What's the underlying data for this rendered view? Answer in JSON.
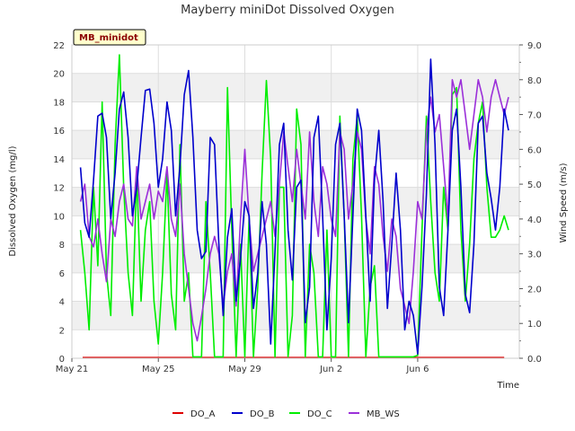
{
  "chart_data": {
    "type": "line",
    "title": "Mayberry miniDot Dissolved Oxygen",
    "station_label": "MB_minidot",
    "xlabel": "Time",
    "ylabel": "Dissolved Oxygen (mg/l)",
    "y2label": "Wind Speed (m/s)",
    "x_range_days": [
      0,
      20.7
    ],
    "ylim": [
      0,
      22
    ],
    "y2lim": [
      0,
      9
    ],
    "x_ticks": [
      {
        "label": "May 21",
        "day": 0
      },
      {
        "label": "May 25",
        "day": 4
      },
      {
        "label": "May 29",
        "day": 8
      },
      {
        "label": "Jun 2",
        "day": 12
      },
      {
        "label": "Jun 6",
        "day": 16
      }
    ],
    "y_ticks": [
      "0",
      "2",
      "4",
      "6",
      "8",
      "10",
      "12",
      "14",
      "16",
      "18",
      "20",
      "22"
    ],
    "y2_ticks": [
      "0.0",
      "1.0",
      "2.0",
      "3.0",
      "4.0",
      "5.0",
      "6.0",
      "7.0",
      "8.0",
      "9.0"
    ],
    "grid": true,
    "legend_position": "bottom",
    "series": [
      {
        "name": "DO_A",
        "axis": "left",
        "color": "#dd0000",
        "x": [
          0.5,
          20.0
        ],
        "y": [
          0.05,
          0.05
        ]
      },
      {
        "name": "DO_B",
        "axis": "left",
        "color": "#0000cc",
        "x": [
          0.4,
          0.6,
          0.8,
          1.0,
          1.2,
          1.4,
          1.6,
          1.8,
          2.0,
          2.2,
          2.4,
          2.6,
          2.8,
          3.0,
          3.2,
          3.4,
          3.6,
          3.8,
          4.0,
          4.2,
          4.4,
          4.6,
          4.8,
          5.0,
          5.2,
          5.4,
          5.6,
          5.8,
          6.0,
          6.2,
          6.4,
          6.6,
          6.8,
          7.0,
          7.2,
          7.4,
          7.6,
          7.8,
          8.0,
          8.2,
          8.4,
          8.6,
          8.8,
          9.0,
          9.2,
          9.4,
          9.6,
          9.8,
          10.0,
          10.2,
          10.4,
          10.6,
          10.8,
          11.0,
          11.2,
          11.4,
          11.6,
          11.8,
          12.0,
          12.2,
          12.4,
          12.6,
          12.8,
          13.0,
          13.2,
          13.4,
          13.6,
          13.8,
          14.0,
          14.2,
          14.4,
          14.6,
          14.8,
          15.0,
          15.2,
          15.4,
          15.6,
          15.8,
          16.0,
          16.2,
          16.4,
          16.6,
          16.8,
          17.0,
          17.2,
          17.4,
          17.6,
          17.8,
          18.0,
          18.2,
          18.4,
          18.6,
          18.8,
          19.0,
          19.2,
          19.4,
          19.6,
          19.8,
          20.0,
          20.2
        ],
        "y": [
          13.4,
          9.5,
          8.5,
          12.5,
          17.0,
          17.2,
          15.5,
          9.8,
          13.0,
          17.5,
          18.7,
          15.5,
          10.0,
          12.0,
          15.5,
          18.8,
          18.9,
          16.5,
          12.0,
          14.0,
          18.0,
          16.0,
          10.0,
          13.5,
          18.5,
          20.2,
          15.5,
          9.0,
          7.0,
          7.5,
          15.5,
          15.0,
          8.0,
          3.0,
          8.5,
          10.5,
          4.0,
          7.0,
          11.0,
          10.0,
          3.5,
          6.0,
          11.0,
          8.0,
          1.0,
          7.5,
          15.0,
          16.5,
          9.0,
          5.5,
          12.0,
          12.5,
          2.5,
          5.0,
          15.5,
          17.0,
          10.0,
          2.0,
          7.0,
          15.0,
          16.5,
          10.0,
          2.5,
          10.0,
          17.5,
          16.0,
          10.0,
          4.0,
          12.5,
          16.0,
          11.0,
          3.5,
          8.0,
          13.0,
          9.0,
          2.0,
          4.0,
          3.0,
          0.3,
          5.0,
          11.5,
          21.0,
          15.0,
          5.0,
          3.0,
          9.0,
          16.0,
          17.5,
          12.0,
          4.5,
          3.2,
          8.0,
          16.5,
          17.0,
          13.0,
          11.2,
          9.0,
          12.0,
          17.5,
          16.0
        ],
        "note": "DO_B continuous trace"
      },
      {
        "name": "DO_C",
        "axis": "left",
        "color": "#00ee00",
        "x": [
          0.4,
          0.6,
          0.8,
          1.0,
          1.2,
          1.4,
          1.6,
          1.8,
          2.0,
          2.2,
          2.4,
          2.6,
          2.8,
          3.0,
          3.2,
          3.4,
          3.6,
          3.8,
          4.0,
          4.2,
          4.4,
          4.6,
          4.8,
          5.0,
          5.2,
          5.4,
          5.6,
          5.8,
          6.0,
          6.2,
          6.4,
          6.6,
          6.8,
          7.0,
          7.2,
          7.4,
          7.6,
          7.8,
          8.0,
          8.2,
          8.4,
          8.6,
          8.8,
          9.0,
          9.2,
          9.4,
          9.6,
          9.8,
          10.0,
          10.2,
          10.4,
          10.6,
          10.8,
          11.0,
          11.2,
          11.4,
          11.6,
          11.8,
          12.0,
          12.2,
          12.4,
          12.6,
          12.8,
          13.0,
          13.2,
          13.4,
          13.6,
          13.8,
          14.0,
          14.2,
          14.4,
          14.6,
          14.8,
          15.0,
          15.2,
          15.4,
          15.6,
          15.8,
          16.0,
          16.2,
          16.4,
          16.6,
          16.8,
          17.0,
          17.2,
          17.4,
          17.6,
          17.8,
          18.0,
          18.2,
          18.4,
          18.6,
          18.8,
          19.0,
          19.2,
          19.4,
          19.6,
          19.8,
          20.0,
          20.2
        ],
        "y": [
          9.0,
          6.0,
          2.0,
          12.0,
          6.5,
          18.0,
          6.0,
          3.0,
          15.0,
          21.3,
          12.0,
          6.0,
          3.0,
          13.0,
          4.0,
          9.0,
          11.0,
          4.0,
          1.0,
          6.0,
          13.0,
          4.5,
          2.0,
          15.0,
          4.0,
          6.0,
          0.1,
          0.1,
          0.1,
          11.0,
          6.0,
          0.1,
          0.1,
          0.1,
          19.0,
          9.0,
          0.1,
          8.0,
          0.1,
          10.0,
          0.1,
          5.0,
          13.0,
          19.5,
          14.0,
          0.1,
          12.0,
          12.0,
          0.1,
          3.0,
          17.5,
          15.0,
          0.1,
          8.0,
          6.0,
          0.1,
          0.1,
          9.0,
          0.1,
          0.1,
          17.0,
          10.0,
          0.1,
          14.0,
          17.0,
          10.0,
          0.1,
          5.0,
          6.5,
          0.1,
          0.1,
          0.1,
          0.1,
          0.1,
          0.1,
          0.1,
          0.1,
          0.1,
          0.2,
          9.0,
          17.0,
          11.0,
          6.0,
          4.0,
          12.0,
          9.0,
          18.5,
          19.0,
          9.0,
          4.0,
          8.0,
          14.0,
          16.5,
          18.0,
          12.0,
          8.5,
          8.5,
          9.0,
          10.0,
          9.0
        ],
        "note": "DO_C continuous trace"
      },
      {
        "name": "MB_WS",
        "axis": "right",
        "color": "#9b30d9",
        "x": [
          0.4,
          0.6,
          0.8,
          1.0,
          1.2,
          1.4,
          1.6,
          1.8,
          2.0,
          2.2,
          2.4,
          2.6,
          2.8,
          3.0,
          3.2,
          3.4,
          3.6,
          3.8,
          4.0,
          4.2,
          4.4,
          4.6,
          4.8,
          5.0,
          5.2,
          5.4,
          5.6,
          5.8,
          6.0,
          6.2,
          6.4,
          6.6,
          6.8,
          7.0,
          7.2,
          7.4,
          7.6,
          7.8,
          8.0,
          8.2,
          8.4,
          8.6,
          8.8,
          9.0,
          9.2,
          9.4,
          9.6,
          9.8,
          10.0,
          10.2,
          10.4,
          10.6,
          10.8,
          11.0,
          11.2,
          11.4,
          11.6,
          11.8,
          12.0,
          12.2,
          12.4,
          12.6,
          12.8,
          13.0,
          13.2,
          13.4,
          13.6,
          13.8,
          14.0,
          14.2,
          14.4,
          14.6,
          14.8,
          15.0,
          15.2,
          15.4,
          15.6,
          15.8,
          16.0,
          16.2,
          16.4,
          16.6,
          16.8,
          17.0,
          17.2,
          17.4,
          17.6,
          17.8,
          18.0,
          18.2,
          18.4,
          18.6,
          18.8,
          19.0,
          19.2,
          19.4,
          19.6,
          19.8,
          20.0,
          20.2
        ],
        "y": [
          4.5,
          5.0,
          3.5,
          3.2,
          4.0,
          3.0,
          2.2,
          4.0,
          3.5,
          4.5,
          5.0,
          4.0,
          3.8,
          5.5,
          4.0,
          4.5,
          5.0,
          4.0,
          4.8,
          4.5,
          5.5,
          4.0,
          3.5,
          5.0,
          3.0,
          2.0,
          1.0,
          0.5,
          1.2,
          2.0,
          3.0,
          3.5,
          3.0,
          1.5,
          2.5,
          3.0,
          1.5,
          4.0,
          6.0,
          4.0,
          2.5,
          3.0,
          3.5,
          4.0,
          4.5,
          3.5,
          5.0,
          6.5,
          5.5,
          4.5,
          6.0,
          5.0,
          4.0,
          6.5,
          4.5,
          3.5,
          5.5,
          5.0,
          4.0,
          3.5,
          6.5,
          6.0,
          4.0,
          5.0,
          6.5,
          6.0,
          4.0,
          3.0,
          5.5,
          5.0,
          3.5,
          2.5,
          4.0,
          3.5,
          2.0,
          1.5,
          1.0,
          2.5,
          4.5,
          4.0,
          6.5,
          7.5,
          6.5,
          7.0,
          5.5,
          4.0,
          8.0,
          7.5,
          8.0,
          7.0,
          6.0,
          7.0,
          8.0,
          7.5,
          6.5,
          7.5,
          8.0,
          7.5,
          7.0,
          7.5
        ]
      }
    ]
  }
}
